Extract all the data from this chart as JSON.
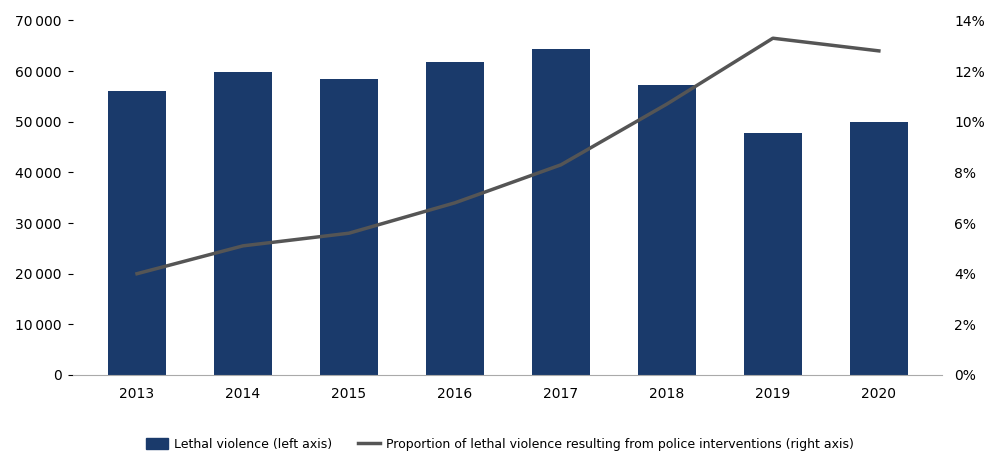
{
  "years": [
    2013,
    2014,
    2015,
    2016,
    2017,
    2018,
    2019,
    2020
  ],
  "lethal_violence": [
    56000,
    59800,
    58500,
    61800,
    64300,
    57300,
    47800,
    50000
  ],
  "police_proportion": [
    0.04,
    0.051,
    0.056,
    0.068,
    0.083,
    0.107,
    0.133,
    0.128
  ],
  "bar_color": "#1a3a6b",
  "line_color": "#555555",
  "bar_width": 0.55,
  "ylim_left": [
    0,
    70000
  ],
  "ylim_right": [
    0,
    0.14
  ],
  "yticks_left": [
    0,
    10000,
    20000,
    30000,
    40000,
    50000,
    60000,
    70000
  ],
  "yticks_right": [
    0,
    0.02,
    0.04,
    0.06,
    0.08,
    0.1,
    0.12,
    0.14
  ],
  "legend_bar_label": "Lethal violence (left axis)",
  "legend_line_label": "Proportion of lethal violence resulting from police interventions (right axis)",
  "background_color": "#ffffff",
  "tick_fontsize": 10,
  "line_width": 2.5
}
